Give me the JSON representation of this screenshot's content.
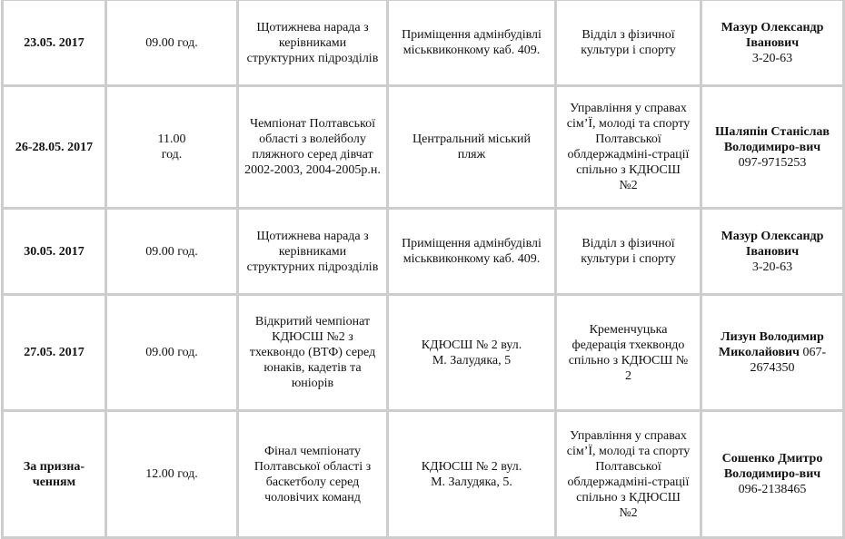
{
  "rows": [
    {
      "date": "23.05. 2017",
      "time": "09.00 год.",
      "event": "Щотижнева нарада з\nкерівниками\nструктурних підрозділів",
      "place": "Приміщення адмінбудівлі\nміськвиконкому каб. 409.",
      "org": "Відділ з фізичної\nкультури і спорту",
      "person": "Мазур Олександр\nІванович",
      "phone": "3-20-63"
    },
    {
      "date": "26-28.05. 2017",
      "time": "11.00\nгод.",
      "event": "Чемпіонат Полтавської\nобласті з волейболу\nпляжного серед дівчат\n2002-2003, 2004-2005р.н.",
      "place": "Центральний міський\nпляж",
      "org": "Управління у справах\nсім’Ї, молоді та спорту\nПолтавської\nоблдержадміні-страції\nспільно з КДЮСШ\n№2",
      "person": "Шаляпін Станіслав\nВолодимиро-вич",
      "phone": "097-9715253"
    },
    {
      "date": "30.05. 2017",
      "time": "09.00 год.",
      "event": "Щотижнева нарада з\nкерівниками\nструктурних підрозділів",
      "place": "Приміщення адмінбудівлі\nміськвиконкому каб. 409.",
      "org": "Відділ з фізичної\nкультури і спорту",
      "person": "Мазур Олександр\nІванович",
      "phone": "3-20-63"
    },
    {
      "date": "27.05. 2017",
      "time": "09.00 год.",
      "event": "Відкритий чемпіонат\nКДЮСШ №2 з\nтхеквондо (ВТФ) серед\nюнаків, кадетів та\nюніорів",
      "place": "КДЮСШ № 2 вул.\nМ. Залудяка, 5",
      "org": "Кременчуцька\nфедерація тхеквондо\nспільно з КДЮСШ №\n2",
      "person": "Лизун Володимир\nМиколайович",
      "phone": " 067-\n2674350"
    },
    {
      "date": "За призна-\nченням",
      "time": "12.00 год.",
      "event": "Фінал чемпіонату\nПолтавської області з\nбаскетболу серед\nчоловічих команд",
      "place": "КДЮСШ № 2 вул.\nМ. Залудяка, 5.",
      "org": "Управління у справах\nсім’Ї, молоді та спорту\nПолтавської\nоблдержадміні-страції\nспільно з КДЮСШ\n№2",
      "person": "Сошенко Дмитро\nВолодимиро-вич",
      "phone": "096-2138465"
    }
  ]
}
